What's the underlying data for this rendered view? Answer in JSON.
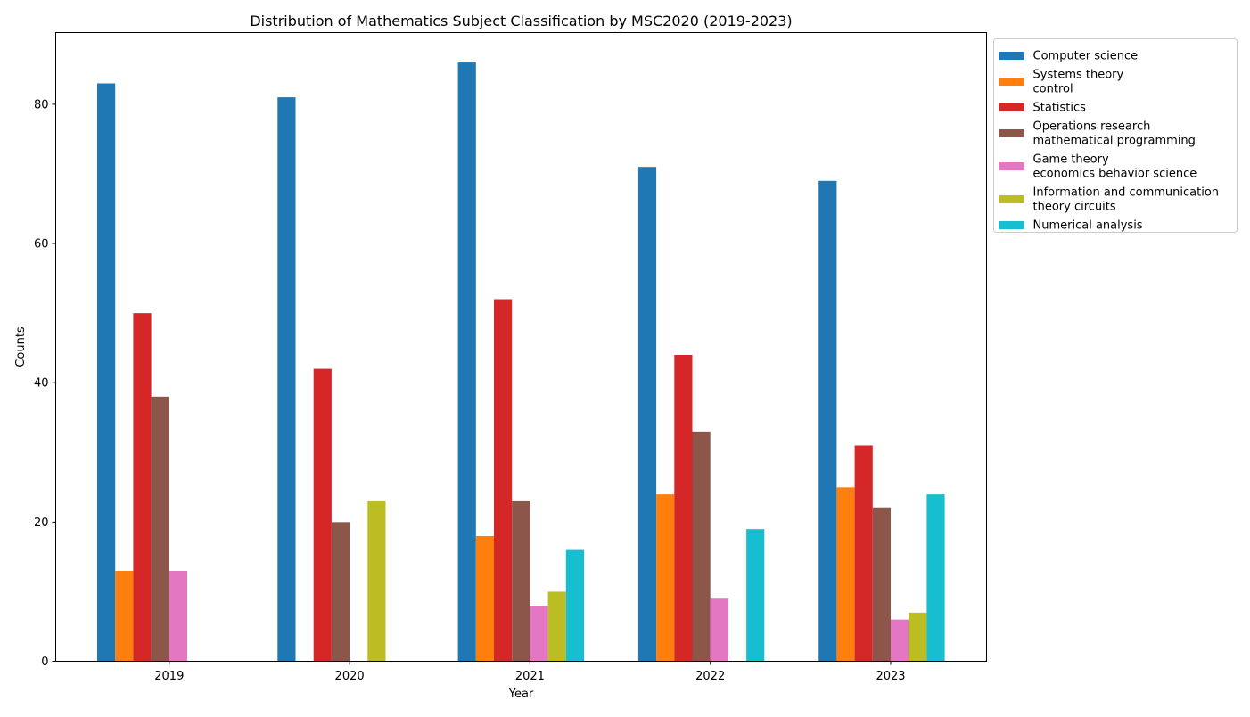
{
  "chart_data": {
    "type": "bar",
    "title": "Distribution of Mathematics Subject Classification by MSC2020 (2019-2023)",
    "xlabel": "Year",
    "ylabel": "Counts",
    "categories": [
      "2019",
      "2020",
      "2021",
      "2022",
      "2023"
    ],
    "ylim": [
      0,
      90.3
    ],
    "yticks": [
      0,
      20,
      40,
      60,
      80
    ],
    "grid": false,
    "legend_position": "outside-top-right",
    "series": [
      {
        "name": "Computer science",
        "label_lines": [
          "Computer science"
        ],
        "color": "#1f77b4",
        "values": [
          83,
          81,
          86,
          71,
          69
        ]
      },
      {
        "name": "Systems theory control",
        "label_lines": [
          "Systems theory",
          "control"
        ],
        "color": "#ff7f0e",
        "values": [
          13,
          0,
          18,
          24,
          25
        ]
      },
      {
        "name": "Statistics",
        "label_lines": [
          "Statistics"
        ],
        "color": "#d62728",
        "values": [
          50,
          42,
          52,
          44,
          31
        ]
      },
      {
        "name": "Operations research mathematical programming",
        "label_lines": [
          "Operations research",
          "mathematical programming"
        ],
        "color": "#8c564b",
        "values": [
          38,
          20,
          23,
          33,
          22
        ]
      },
      {
        "name": "Game theory economics behavior science",
        "label_lines": [
          "Game theory",
          "economics behavior science"
        ],
        "color": "#e377c2",
        "values": [
          13,
          0,
          8,
          9,
          6
        ]
      },
      {
        "name": "Information and communication theory circuits",
        "label_lines": [
          "Information and communication",
          "theory circuits"
        ],
        "color": "#bcbd22",
        "values": [
          0,
          23,
          10,
          0,
          7
        ]
      },
      {
        "name": "Numerical analysis",
        "label_lines": [
          "Numerical analysis"
        ],
        "color": "#17becf",
        "values": [
          0,
          0,
          16,
          19,
          24
        ]
      }
    ]
  }
}
